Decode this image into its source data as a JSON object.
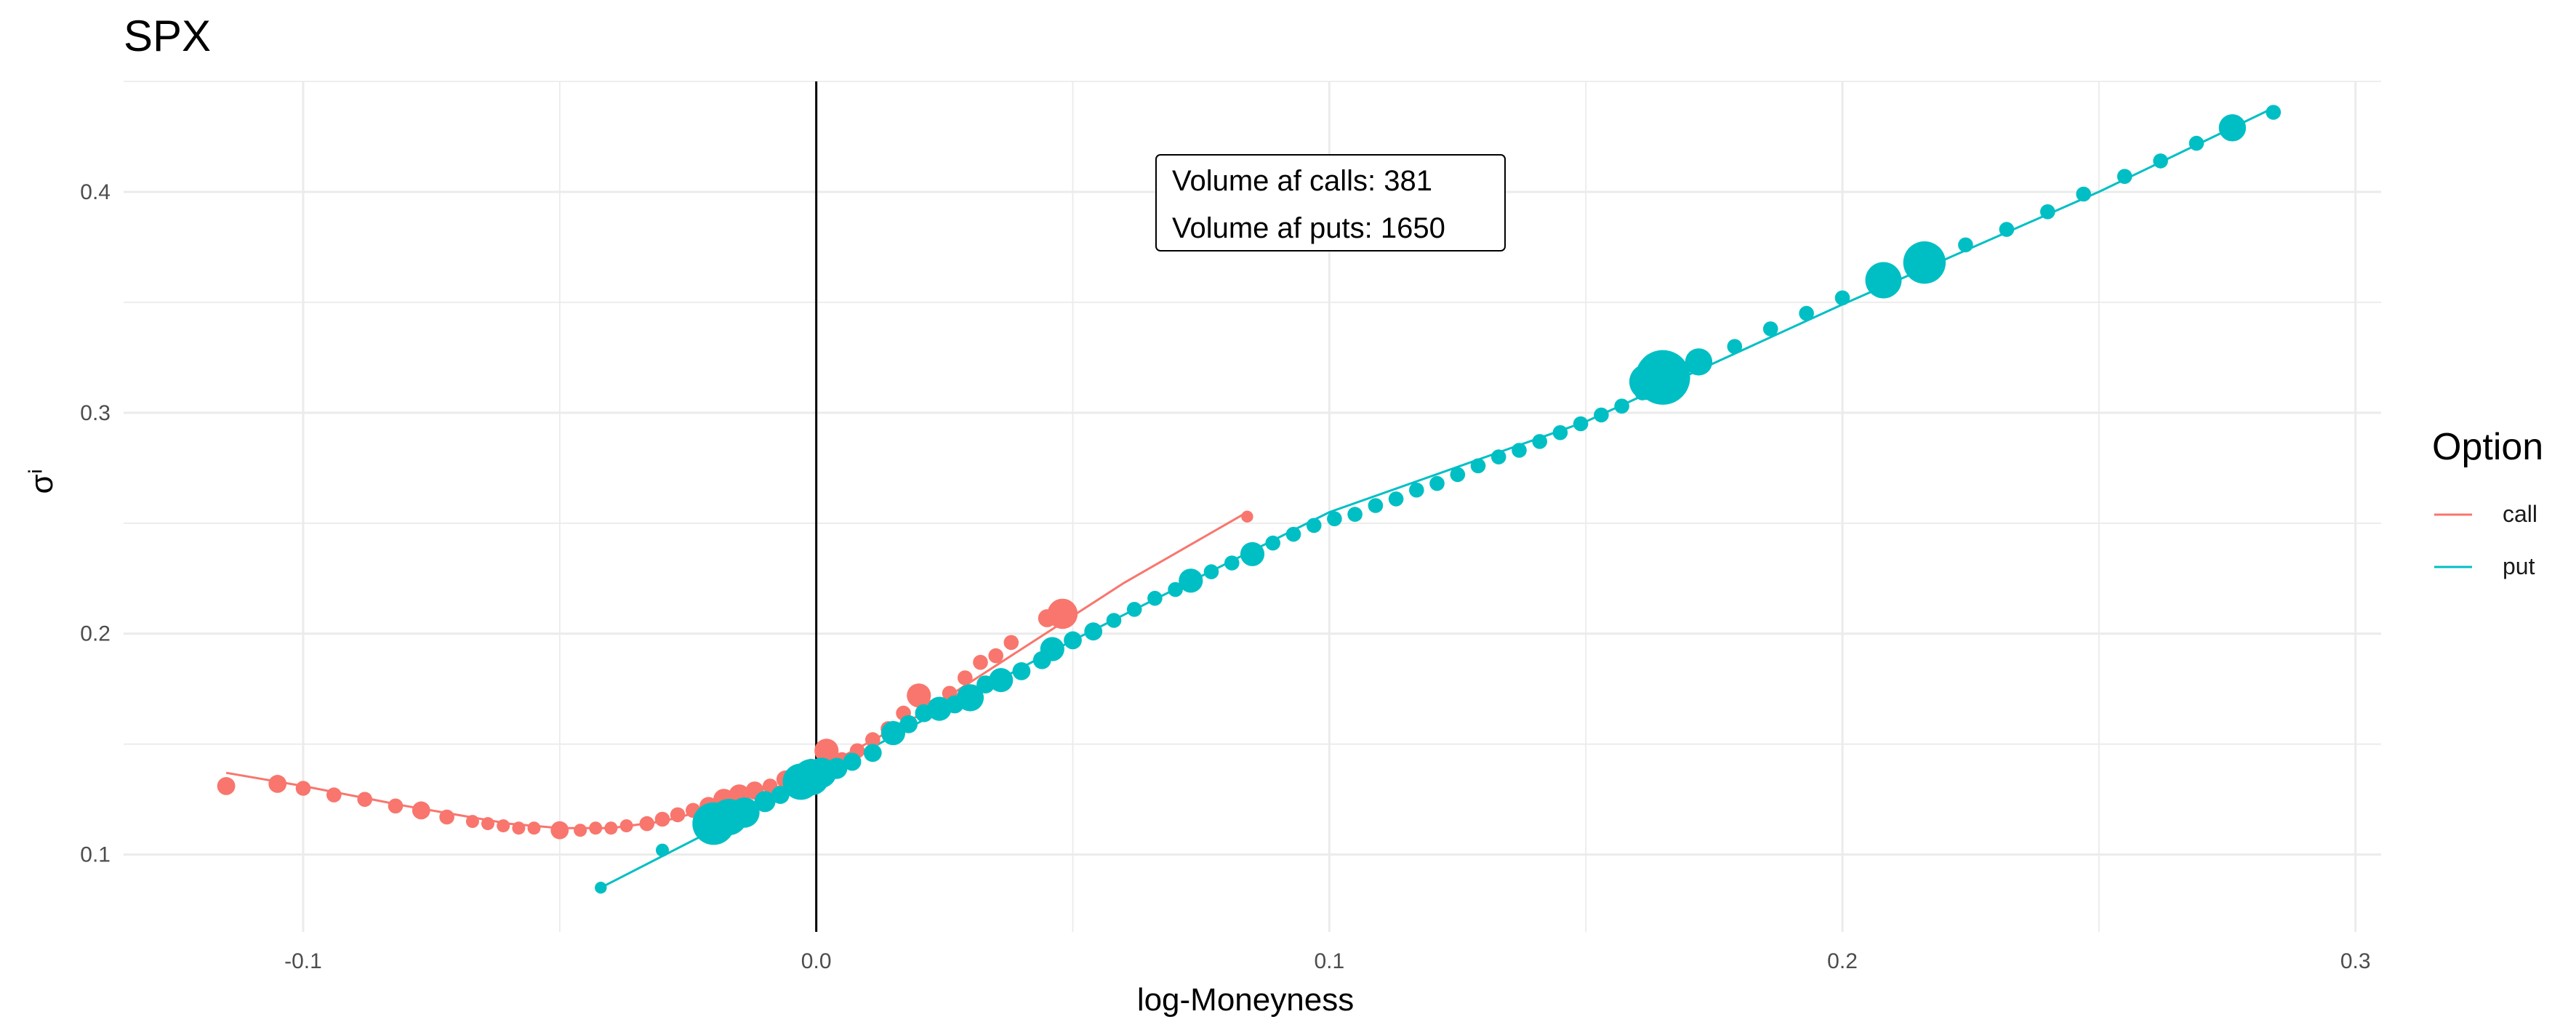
{
  "chart_data": {
    "type": "scatter",
    "title": "SPX",
    "xlabel": "log-Moneyness",
    "ylabel": "σⁱ",
    "xlim": [
      -0.135,
      0.305
    ],
    "ylim": [
      0.065,
      0.45
    ],
    "x_ticks": [
      -0.1,
      0.0,
      0.1,
      0.2,
      0.3
    ],
    "x_tick_labels": [
      "-0.1",
      "0.0",
      "0.1",
      "0.2",
      "0.3"
    ],
    "y_ticks": [
      0.1,
      0.2,
      0.3,
      0.4
    ],
    "y_tick_labels": [
      "0.1",
      "0.2",
      "0.3",
      "0.4"
    ],
    "grid": true,
    "vline_x": 0.0,
    "legend": {
      "title": "Option",
      "position": "right",
      "entries": [
        {
          "label": "call",
          "color": "#F8766D"
        },
        {
          "label": "put",
          "color": "#00BFC4"
        }
      ]
    },
    "annotation": {
      "lines": [
        "Volume af calls: 381",
        "Volume af puts: 1650"
      ]
    },
    "series": [
      {
        "name": "call",
        "color": "#F8766D",
        "fit_line": [
          [
            -0.115,
            0.137
          ],
          [
            -0.1,
            0.131
          ],
          [
            -0.08,
            0.122
          ],
          [
            -0.06,
            0.114
          ],
          [
            -0.05,
            0.112
          ],
          [
            -0.04,
            0.112
          ],
          [
            -0.03,
            0.115
          ],
          [
            -0.02,
            0.121
          ],
          [
            -0.01,
            0.128
          ],
          [
            0.0,
            0.138
          ],
          [
            0.02,
            0.163
          ],
          [
            0.04,
            0.193
          ],
          [
            0.06,
            0.223
          ],
          [
            0.084,
            0.255
          ]
        ],
        "points": [
          [
            -0.115,
            0.131,
            2
          ],
          [
            -0.105,
            0.132,
            2
          ],
          [
            -0.1,
            0.13,
            1.5
          ],
          [
            -0.094,
            0.127,
            1.5
          ],
          [
            -0.088,
            0.125,
            1.5
          ],
          [
            -0.082,
            0.122,
            1.5
          ],
          [
            -0.077,
            0.12,
            2
          ],
          [
            -0.072,
            0.117,
            1.5
          ],
          [
            -0.067,
            0.115,
            1.2
          ],
          [
            -0.064,
            0.114,
            1.2
          ],
          [
            -0.061,
            0.113,
            1.2
          ],
          [
            -0.058,
            0.112,
            1.2
          ],
          [
            -0.055,
            0.112,
            1.2
          ],
          [
            -0.05,
            0.111,
            2
          ],
          [
            -0.046,
            0.111,
            1.2
          ],
          [
            -0.043,
            0.112,
            1.2
          ],
          [
            -0.04,
            0.112,
            1.2
          ],
          [
            -0.037,
            0.113,
            1.2
          ],
          [
            -0.033,
            0.114,
            1.5
          ],
          [
            -0.03,
            0.116,
            1.5
          ],
          [
            -0.027,
            0.118,
            1.5
          ],
          [
            -0.024,
            0.12,
            1.5
          ],
          [
            -0.021,
            0.122,
            2
          ],
          [
            -0.018,
            0.125,
            2.5
          ],
          [
            -0.015,
            0.127,
            2.5
          ],
          [
            -0.012,
            0.129,
            2
          ],
          [
            -0.009,
            0.131,
            1.5
          ],
          [
            -0.006,
            0.134,
            2
          ],
          [
            -0.003,
            0.137,
            2
          ],
          [
            -0.001,
            0.14,
            1.5
          ],
          [
            0.002,
            0.147,
            3
          ],
          [
            0.005,
            0.143,
            1.5
          ],
          [
            0.008,
            0.147,
            1.5
          ],
          [
            0.011,
            0.152,
            1.5
          ],
          [
            0.014,
            0.157,
            1.5
          ],
          [
            0.017,
            0.164,
            1.5
          ],
          [
            0.02,
            0.172,
            3
          ],
          [
            0.023,
            0.167,
            1.5
          ],
          [
            0.026,
            0.173,
            1.5
          ],
          [
            0.029,
            0.18,
            1.5
          ],
          [
            0.032,
            0.187,
            1.5
          ],
          [
            0.035,
            0.19,
            1.5
          ],
          [
            0.038,
            0.196,
            1.5
          ],
          [
            0.045,
            0.207,
            2
          ],
          [
            0.048,
            0.209,
            4
          ],
          [
            0.084,
            0.253,
            1
          ]
        ]
      },
      {
        "name": "put",
        "color": "#00BFC4",
        "fit_line": [
          [
            -0.042,
            0.085
          ],
          [
            0.0,
            0.135
          ],
          [
            0.05,
            0.197
          ],
          [
            0.1,
            0.255
          ],
          [
            0.15,
            0.296
          ],
          [
            0.2,
            0.349
          ],
          [
            0.25,
            0.4
          ],
          [
            0.284,
            0.438
          ]
        ],
        "points": [
          [
            -0.042,
            0.085,
            1
          ],
          [
            -0.03,
            0.102,
            1.2
          ],
          [
            -0.02,
            0.114,
            6
          ],
          [
            -0.017,
            0.117,
            5
          ],
          [
            -0.014,
            0.119,
            4
          ],
          [
            -0.01,
            0.124,
            2.5
          ],
          [
            -0.007,
            0.127,
            2
          ],
          [
            -0.004,
            0.13,
            2
          ],
          [
            -0.003,
            0.133,
            5
          ],
          [
            -0.001,
            0.135,
            5
          ],
          [
            0.001,
            0.137,
            4
          ],
          [
            0.004,
            0.139,
            2.5
          ],
          [
            0.007,
            0.142,
            2
          ],
          [
            0.011,
            0.146,
            2
          ],
          [
            0.015,
            0.155,
            3
          ],
          [
            0.018,
            0.159,
            2
          ],
          [
            0.021,
            0.164,
            2
          ],
          [
            0.024,
            0.166,
            3
          ],
          [
            0.027,
            0.168,
            2
          ],
          [
            0.03,
            0.171,
            3.5
          ],
          [
            0.033,
            0.177,
            2
          ],
          [
            0.036,
            0.179,
            3
          ],
          [
            0.04,
            0.183,
            2
          ],
          [
            0.044,
            0.188,
            2
          ],
          [
            0.046,
            0.193,
            3
          ],
          [
            0.05,
            0.197,
            2
          ],
          [
            0.054,
            0.201,
            2
          ],
          [
            0.058,
            0.206,
            1.5
          ],
          [
            0.062,
            0.211,
            1.5
          ],
          [
            0.066,
            0.216,
            1.5
          ],
          [
            0.07,
            0.22,
            1.5
          ],
          [
            0.073,
            0.224,
            3
          ],
          [
            0.077,
            0.228,
            1.5
          ],
          [
            0.081,
            0.232,
            1.5
          ],
          [
            0.085,
            0.236,
            3
          ],
          [
            0.089,
            0.241,
            1.5
          ],
          [
            0.093,
            0.245,
            1.5
          ],
          [
            0.097,
            0.249,
            1.5
          ],
          [
            0.101,
            0.252,
            1.5
          ],
          [
            0.105,
            0.254,
            1.5
          ],
          [
            0.109,
            0.258,
            1.5
          ],
          [
            0.113,
            0.261,
            1.5
          ],
          [
            0.117,
            0.265,
            1.5
          ],
          [
            0.121,
            0.268,
            1.5
          ],
          [
            0.125,
            0.272,
            1.5
          ],
          [
            0.129,
            0.276,
            1.5
          ],
          [
            0.133,
            0.28,
            1.5
          ],
          [
            0.137,
            0.283,
            1.5
          ],
          [
            0.141,
            0.287,
            1.5
          ],
          [
            0.145,
            0.291,
            1.5
          ],
          [
            0.149,
            0.295,
            1.5
          ],
          [
            0.153,
            0.299,
            1.5
          ],
          [
            0.157,
            0.303,
            1.5
          ],
          [
            0.161,
            0.309,
            1.5
          ],
          [
            0.162,
            0.314,
            5
          ],
          [
            0.165,
            0.316,
            8
          ],
          [
            0.172,
            0.323,
            3.5
          ],
          [
            0.179,
            0.33,
            1.5
          ],
          [
            0.186,
            0.338,
            1.5
          ],
          [
            0.193,
            0.345,
            1.5
          ],
          [
            0.2,
            0.352,
            1.5
          ],
          [
            0.208,
            0.36,
            5
          ],
          [
            0.216,
            0.368,
            6
          ],
          [
            0.224,
            0.376,
            1.5
          ],
          [
            0.232,
            0.383,
            1.5
          ],
          [
            0.24,
            0.391,
            1.5
          ],
          [
            0.247,
            0.399,
            1.5
          ],
          [
            0.255,
            0.407,
            1.5
          ],
          [
            0.262,
            0.414,
            1.5
          ],
          [
            0.269,
            0.422,
            1.5
          ],
          [
            0.276,
            0.429,
            3.5
          ],
          [
            0.284,
            0.436,
            1.5
          ]
        ]
      }
    ]
  }
}
